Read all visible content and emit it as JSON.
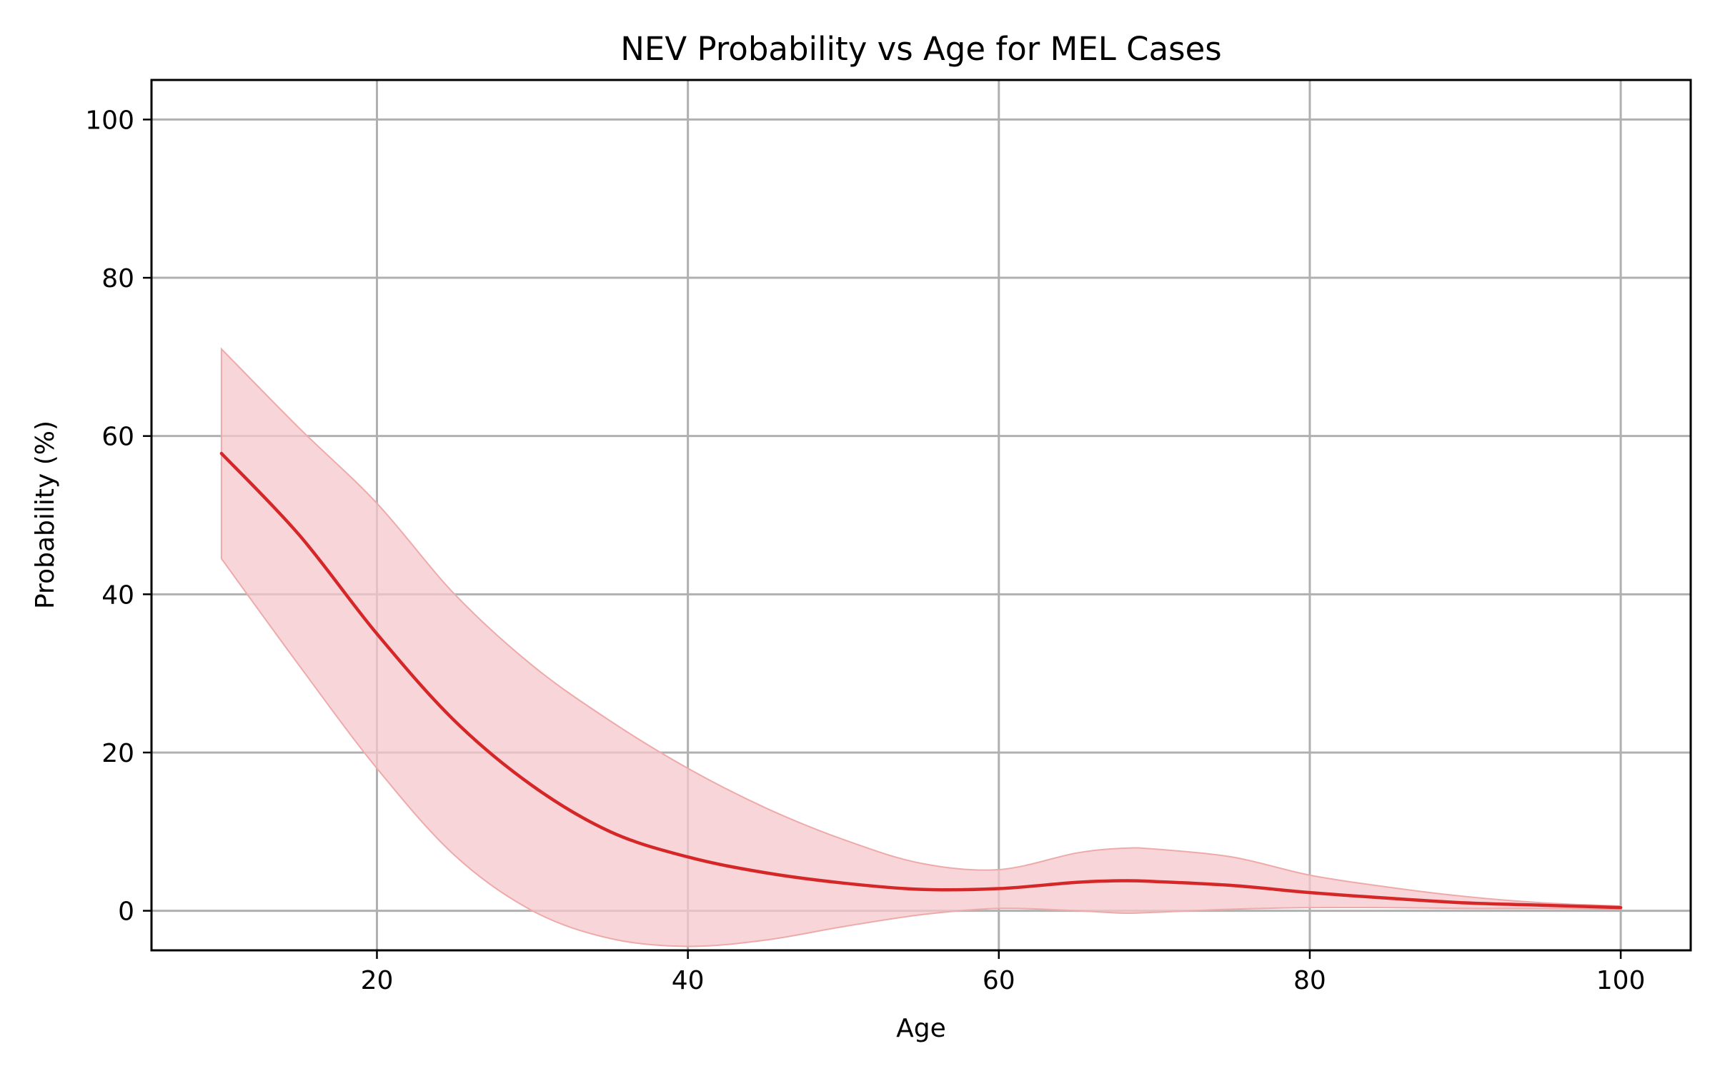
{
  "chart_data": {
    "type": "line",
    "title": "NEV Probability vs Age for MEL Cases",
    "xlabel": "Age",
    "ylabel": "Probability (%)",
    "xlim": [
      5.5,
      104.5
    ],
    "ylim": [
      -5,
      105
    ],
    "xticks": [
      20,
      40,
      60,
      80,
      100
    ],
    "yticks": [
      0,
      20,
      40,
      60,
      80,
      100
    ],
    "grid": true,
    "series": [
      {
        "color": "#d62728",
        "band_color": "#f4c7cb",
        "x": [
          10,
          15,
          20,
          25,
          30,
          35,
          40,
          45,
          50,
          55,
          60,
          65,
          68,
          70,
          75,
          80,
          85,
          90,
          95,
          100
        ],
        "y": [
          57.8,
          47.5,
          35,
          24,
          15.8,
          10,
          6.8,
          4.8,
          3.5,
          2.7,
          2.8,
          3.6,
          3.8,
          3.7,
          3.2,
          2.3,
          1.6,
          1.0,
          0.7,
          0.4
        ],
        "lower": [
          44.5,
          31,
          18,
          7,
          0,
          -3.5,
          -4.5,
          -3.7,
          -2,
          -0.5,
          0.3,
          0,
          -0.3,
          -0.2,
          0.2,
          0.4,
          0.4,
          0.3,
          0.3,
          0.2
        ],
        "upper": [
          71,
          61,
          51.5,
          40,
          31,
          24,
          18,
          13,
          9,
          6,
          5.2,
          7.3,
          7.9,
          7.8,
          6.8,
          4.5,
          3.0,
          1.8,
          1.0,
          0.6
        ]
      }
    ]
  }
}
